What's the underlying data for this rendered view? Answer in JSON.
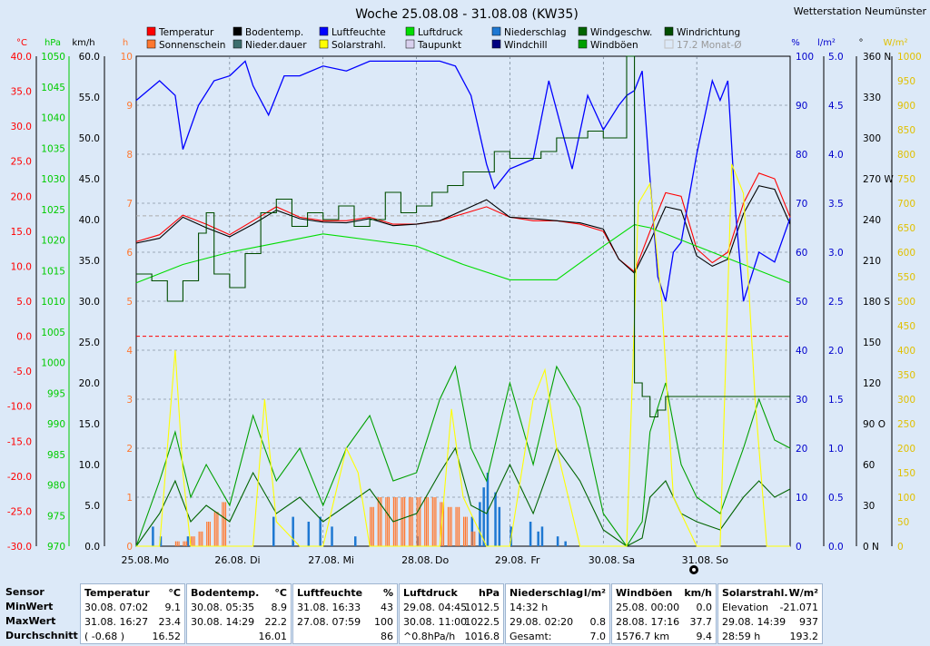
{
  "station": "Wetterstation Neumünster",
  "chart_data": {
    "type": "line",
    "title": "Woche 25.08.08 - 31.08.08 (KW35)",
    "x_ticks": [
      "25.08.",
      "Mo",
      "26.08.",
      "Di",
      "27.08.",
      "Mi",
      "28.08.",
      "Do",
      "29.08.",
      "Fr",
      "30.08.",
      "Sa",
      "31.08.",
      "So"
    ],
    "x_range_hours": [
      0,
      168
    ],
    "grid": true,
    "legend": [
      {
        "name": "Temperatur",
        "color": "#ff0000"
      },
      {
        "name": "Bodentemp.",
        "color": "#000000"
      },
      {
        "name": "Luftfeuchte",
        "color": "#0000ff"
      },
      {
        "name": "Luftdruck",
        "color": "#00dd00"
      },
      {
        "name": "Niederschlag",
        "color": "#1e78d2"
      },
      {
        "name": "Windgeschw.",
        "color": "#006400"
      },
      {
        "name": "Windrichtung",
        "color": "#004d00"
      },
      {
        "name": "Sonnenschein",
        "color": "#ff7830"
      },
      {
        "name": "Nieder.dauer",
        "color": "#3c6e6e"
      },
      {
        "name": "Solarstrahl.",
        "color": "#ffff00"
      },
      {
        "name": "Taupunkt",
        "color": "#d8d0ee"
      },
      {
        "name": "Windchill",
        "color": "#000080"
      },
      {
        "name": "Windböen",
        "color": "#00a000"
      },
      {
        "name": "17.2 Monat-Ø",
        "color": "#c0c0c0"
      }
    ],
    "axes": {
      "temp": {
        "unit": "°C",
        "range": [
          -30,
          40
        ],
        "ticks": [
          "40.0",
          "35.0",
          "30.0",
          "25.0",
          "20.0",
          "15.0",
          "10.0",
          "5.0",
          "0.0",
          "-5.0",
          "-10.0",
          "-15.0",
          "-20.0",
          "-25.0",
          "-30.0"
        ],
        "color": "#ff0000"
      },
      "pressure": {
        "unit": "hPa",
        "range": [
          970,
          1050
        ],
        "ticks": [
          "1050",
          "1045",
          "1040",
          "1035",
          "1030",
          "1025",
          "1020",
          "1015",
          "1010",
          "1005",
          "1000",
          "995",
          "990",
          "985",
          "980",
          "975",
          "970"
        ],
        "color": "#00cc00"
      },
      "wind": {
        "unit": "km/h",
        "range": [
          0,
          60
        ],
        "ticks": [
          "60.0",
          "55.0",
          "50.0",
          "45.0",
          "40.0",
          "35.0",
          "30.0",
          "25.0",
          "20.0",
          "15.0",
          "10.0",
          "5.0",
          "0.0"
        ],
        "color": "#000000"
      },
      "hours": {
        "unit": "h",
        "range": [
          0,
          10
        ],
        "ticks": [
          "10",
          "9",
          "8",
          "7",
          "6",
          "5",
          "4",
          "3",
          "2",
          "1",
          "0"
        ],
        "color": "#ff7830"
      },
      "humidity": {
        "unit": "%",
        "range": [
          0,
          100
        ],
        "ticks": [
          "100",
          "90",
          "80",
          "70",
          "60",
          "50",
          "40",
          "30",
          "20",
          "10",
          "0"
        ],
        "color": "#0000cc"
      },
      "rain": {
        "unit": "l/m²",
        "range": [
          0,
          5
        ],
        "ticks": [
          "5.0",
          "4.5",
          "4.0",
          "3.5",
          "3.0",
          "2.5",
          "2.0",
          "1.5",
          "1.0",
          "0.5",
          "0.0"
        ],
        "color": "#0000cc"
      },
      "direction": {
        "unit": "°",
        "range": [
          0,
          360
        ],
        "ticks": [
          "360 N",
          "330",
          "300",
          "270 W",
          "240",
          "210",
          "180 S",
          "150",
          "120",
          "90 O",
          "60",
          "30",
          "0 N"
        ],
        "color": "#000000"
      },
      "solar": {
        "unit": "W/m²",
        "range": [
          0,
          1000
        ],
        "ticks": [
          "1000",
          "950",
          "900",
          "850",
          "800",
          "750",
          "700",
          "650",
          "600",
          "550",
          "500",
          "450",
          "400",
          "350",
          "300",
          "250",
          "200",
          "150",
          "100",
          "50",
          "0"
        ],
        "color": "#e0c000"
      }
    },
    "series": [
      {
        "name": "Temperatur",
        "axis": "temp",
        "t": [
          0,
          6,
          12,
          18,
          24,
          30,
          36,
          42,
          48,
          54,
          60,
          66,
          72,
          78,
          84,
          90,
          96,
          102,
          108,
          114,
          120,
          124,
          128,
          132,
          136,
          140,
          144,
          148,
          152,
          156,
          160,
          164,
          168
        ],
        "values": [
          13.5,
          14.5,
          17.3,
          16.0,
          14.5,
          16.5,
          18.5,
          17.0,
          16.5,
          16.5,
          17.0,
          16.0,
          16.0,
          16.5,
          17.5,
          18.5,
          17.0,
          16.5,
          16.5,
          16.0,
          15.0,
          11.0,
          9.2,
          15.0,
          20.5,
          20.0,
          12.5,
          10.5,
          12.0,
          19.0,
          23.3,
          22.5,
          17.0
        ]
      },
      {
        "name": "Bodentemp.",
        "axis": "temp",
        "t": [
          0,
          6,
          12,
          18,
          24,
          30,
          36,
          42,
          48,
          54,
          60,
          66,
          72,
          78,
          84,
          90,
          96,
          102,
          108,
          114,
          120,
          124,
          128,
          132,
          136,
          140,
          144,
          148,
          152,
          156,
          160,
          164,
          168
        ],
        "values": [
          13.3,
          14.0,
          17.0,
          15.5,
          14.2,
          16.0,
          18.0,
          16.8,
          16.3,
          16.2,
          16.8,
          15.8,
          16.0,
          16.5,
          18.0,
          19.5,
          17.0,
          16.8,
          16.5,
          16.2,
          15.3,
          11.0,
          9.0,
          13.5,
          18.5,
          18.0,
          11.5,
          10.0,
          11.0,
          17.5,
          21.5,
          21.0,
          16.0
        ]
      },
      {
        "name": "Luftfeuchte",
        "axis": "humidity",
        "t": [
          0,
          6,
          10,
          12,
          16,
          20,
          24,
          28,
          30,
          34,
          38,
          42,
          48,
          54,
          60,
          66,
          72,
          78,
          82,
          86,
          90,
          92,
          96,
          102,
          106,
          108,
          112,
          116,
          120,
          124,
          126,
          128,
          130,
          132,
          134,
          136,
          138,
          140,
          144,
          148,
          150,
          152,
          154,
          156,
          160,
          164,
          168
        ],
        "values": [
          91,
          95,
          92,
          81,
          90,
          95,
          96,
          99,
          94,
          88,
          96,
          96,
          98,
          97,
          99,
          99,
          99,
          99,
          98,
          92,
          78,
          73,
          77,
          79,
          95,
          89,
          77,
          92,
          85,
          90,
          92,
          93,
          97,
          75,
          55,
          50,
          60,
          62,
          80,
          95,
          91,
          95,
          68,
          50,
          60,
          58,
          67
        ]
      },
      {
        "name": "Luftdruck",
        "axis": "pressure",
        "t": [
          0,
          12,
          24,
          36,
          48,
          60,
          72,
          84,
          96,
          108,
          120,
          128,
          132,
          136,
          144,
          156,
          168
        ],
        "values": [
          1013,
          1016,
          1018,
          1019.5,
          1021,
          1020,
          1019,
          1016,
          1013.5,
          1013.5,
          1019,
          1022.5,
          1022,
          1021,
          1019,
          1016,
          1013
        ]
      },
      {
        "name": "Windgeschw.",
        "axis": "wind",
        "t": [
          0,
          6,
          10,
          14,
          18,
          24,
          30,
          36,
          42,
          48,
          54,
          60,
          66,
          72,
          78,
          82,
          86,
          90,
          96,
          102,
          108,
          114,
          120,
          126,
          130,
          132,
          136,
          140,
          144,
          150,
          156,
          160,
          164,
          168
        ],
        "values": [
          0,
          4,
          8,
          3,
          5,
          3,
          9,
          4,
          6,
          3,
          5,
          7,
          3,
          4,
          9,
          12,
          5,
          4,
          10,
          4,
          12,
          8,
          2,
          0,
          1,
          6,
          8,
          4,
          3,
          2,
          6,
          8,
          6,
          7
        ]
      },
      {
        "name": "Windböen",
        "axis": "wind",
        "t": [
          0,
          6,
          10,
          14,
          18,
          24,
          30,
          36,
          42,
          48,
          54,
          60,
          66,
          72,
          78,
          82,
          86,
          90,
          96,
          102,
          108,
          114,
          120,
          126,
          130,
          132,
          136,
          140,
          144,
          150,
          156,
          160,
          164,
          168
        ],
        "values": [
          0,
          8,
          14,
          6,
          10,
          5,
          16,
          8,
          12,
          5,
          12,
          16,
          8,
          9,
          18,
          22,
          12,
          8,
          20,
          10,
          22,
          17,
          4,
          0,
          3,
          14,
          20,
          10,
          6,
          4,
          12,
          18,
          13,
          12
        ]
      },
      {
        "name": "Solarstrahl.",
        "axis": "solar",
        "t": [
          0,
          6,
          9,
          10,
          12,
          14,
          18,
          24,
          30,
          33,
          36,
          42,
          48,
          54,
          57,
          60,
          66,
          72,
          78,
          81,
          84,
          90,
          96,
          102,
          105,
          108,
          114,
          120,
          126,
          129,
          132,
          135,
          138,
          144,
          150,
          153,
          156,
          159,
          162,
          168
        ],
        "values": [
          0,
          0,
          300,
          400,
          150,
          0,
          0,
          0,
          0,
          300,
          50,
          0,
          0,
          200,
          150,
          0,
          0,
          0,
          0,
          280,
          100,
          0,
          0,
          300,
          360,
          200,
          0,
          0,
          0,
          700,
          740,
          500,
          100,
          0,
          0,
          780,
          720,
          300,
          0,
          0
        ]
      },
      {
        "name": "Windrichtung",
        "axis": "direction",
        "t": [
          0,
          4,
          8,
          12,
          16,
          18,
          20,
          24,
          28,
          32,
          36,
          40,
          44,
          48,
          52,
          56,
          60,
          64,
          68,
          72,
          76,
          80,
          84,
          88,
          92,
          96,
          100,
          104,
          108,
          112,
          116,
          120,
          124,
          126,
          128,
          130,
          132,
          134,
          136,
          140,
          144,
          148,
          152,
          156,
          160,
          164,
          168
        ],
        "values": [
          200,
          195,
          180,
          195,
          230,
          245,
          200,
          190,
          215,
          245,
          255,
          235,
          245,
          240,
          250,
          235,
          240,
          260,
          245,
          250,
          260,
          265,
          275,
          275,
          290,
          285,
          285,
          290,
          300,
          300,
          305,
          300,
          300,
          360,
          120,
          110,
          95,
          100,
          110,
          110,
          110,
          110,
          110,
          110,
          110,
          110,
          110
        ]
      }
    ],
    "bars": {
      "Niederschlag": {
        "axis": "rain",
        "t": [
          4,
          6,
          13,
          35,
          40,
          44,
          47,
          50,
          56,
          72,
          86,
          88,
          89,
          90,
          92,
          93,
          96,
          101,
          103,
          104,
          108,
          110
        ],
        "values": [
          0.2,
          0.1,
          0.1,
          0.3,
          0.3,
          0.25,
          0.3,
          0.2,
          0.1,
          0.1,
          0.3,
          0.45,
          0.6,
          0.75,
          0.55,
          0.4,
          0.2,
          0.25,
          0.15,
          0.2,
          0.1,
          0.05
        ]
      },
      "Sonnenschein": {
        "axis": "hours",
        "t": [
          10,
          12,
          14,
          16,
          18,
          20,
          22,
          60,
          62,
          64,
          66,
          68,
          70,
          72,
          74,
          76,
          78,
          80,
          82,
          84,
          86
        ],
        "values": [
          0.1,
          0.1,
          0.2,
          0.3,
          0.5,
          0.7,
          0.9,
          0.8,
          1.0,
          1.0,
          1.0,
          1.0,
          1.0,
          1.0,
          1.0,
          1.0,
          0.9,
          0.8,
          0.8,
          0.6,
          0.3
        ]
      }
    },
    "reference_lines": [
      {
        "axis": "temp",
        "value": 0,
        "style": "dashed-red"
      },
      {
        "axis": "temp",
        "value": 17.2,
        "style": "dashed-gray"
      }
    ]
  },
  "stats": {
    "labels": {
      "sensor": "Sensor",
      "min": "MinWert",
      "max": "MaxWert",
      "avg": "Durchschnitt"
    },
    "columns": [
      {
        "title": "Temperatur",
        "unit": "°C",
        "min_time": "30.08.  07:02",
        "min": "9.1",
        "max_time": "31.08.  16:27",
        "max": "23.4",
        "avg_time": "( -0.68 )",
        "avg": "16.52"
      },
      {
        "title": "Bodentemp.",
        "unit": "°C",
        "min_time": "30.08.  05:35",
        "min": "8.9",
        "max_time": "30.08.  14:29",
        "max": "22.2",
        "avg_time": "",
        "avg": "16.01"
      },
      {
        "title": "Luftfeuchte",
        "unit": "%",
        "min_time": "31.08.  16:33",
        "min": "43",
        "max_time": "27.08.  07:59",
        "max": "100",
        "avg_time": "",
        "avg": "86"
      },
      {
        "title": "Luftdruck",
        "unit": "hPa",
        "min_time": "29.08.  04:45",
        "min": "1012.5",
        "max_time": "30.08.  11:00",
        "max": "1022.5",
        "avg_time": "^0.8hPa/h",
        "avg": "1016.8"
      },
      {
        "title": "Niederschlag",
        "unit": "l/m²",
        "min_time": "14:32 h",
        "min": "",
        "max_time": "29.08.  02:20",
        "max": "0.8",
        "avg_time": "Gesamt:",
        "avg": "7.0"
      },
      {
        "title": "Windböen",
        "unit": "km/h",
        "min_time": "25.08.  00:00",
        "min": "0.0",
        "max_time": "28.08.  17:16",
        "max": "37.7",
        "avg_time": "1576.7 km",
        "avg": "9.4"
      },
      {
        "title": "Solarstrahl.",
        "unit": "W/m²",
        "min_time": "Elevation",
        "min": "-21.071",
        "max_time": "29.08.  14:39",
        "max": "937",
        "avg_time": "28:59 h",
        "avg": "193.2"
      }
    ]
  }
}
